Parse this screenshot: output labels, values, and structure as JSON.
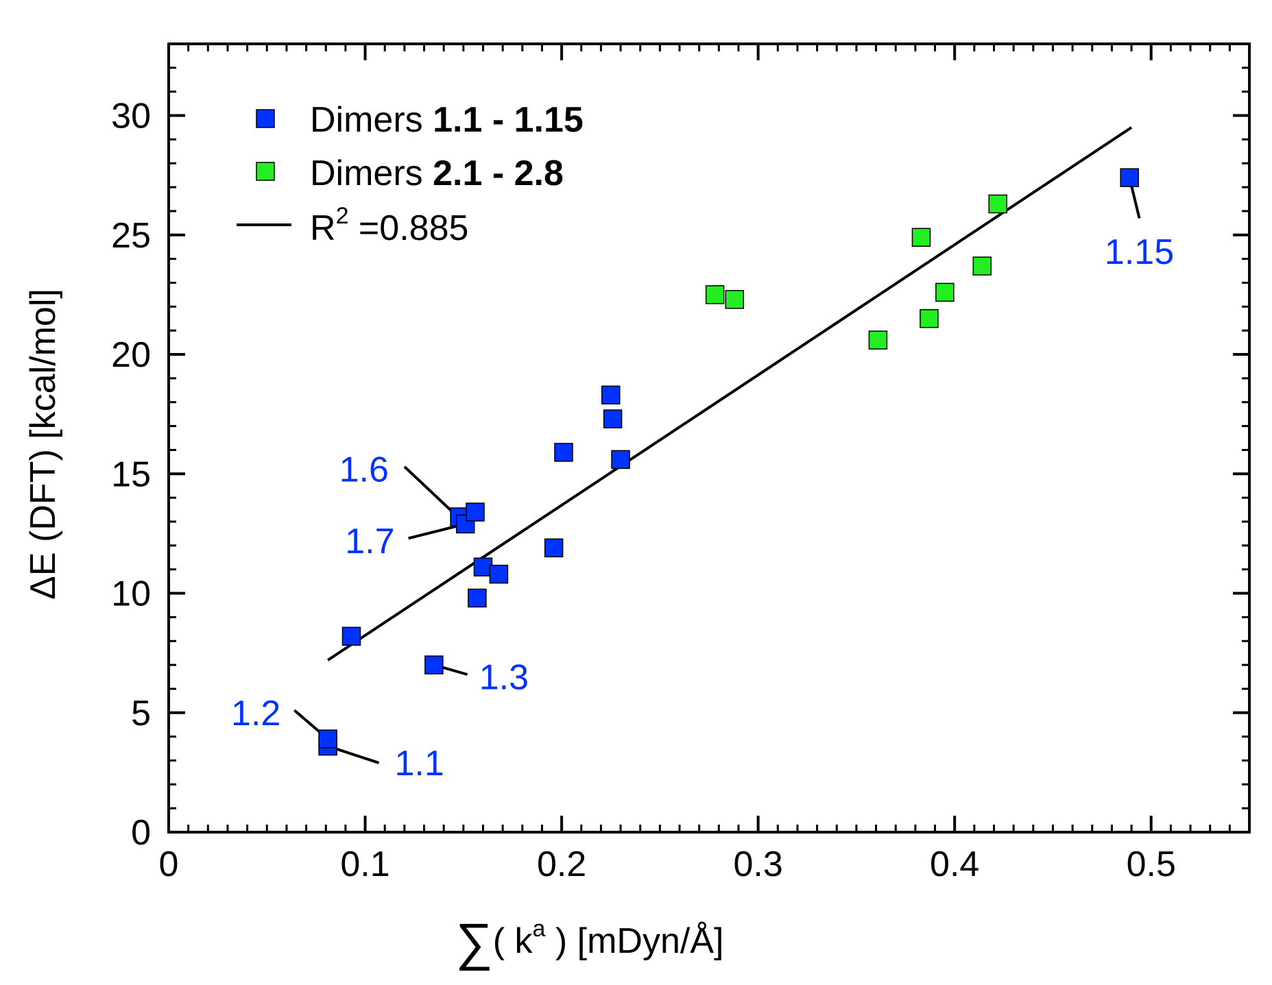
{
  "chart_data": {
    "type": "scatter",
    "xlabel": {
      "sum_symbol": "∑",
      "pre": "( k",
      "sup": "a",
      "post": " ) [mDyn/Å]"
    },
    "ylabel": "ΔE (DFT) [kcal/mol]",
    "xlim": [
      0,
      0.55
    ],
    "ylim": [
      0,
      33
    ],
    "x_ticks": [
      0,
      0.1,
      0.2,
      0.3,
      0.4,
      0.5
    ],
    "x_tick_labels": [
      "0",
      "0.1",
      "0.2",
      "0.3",
      "0.4",
      "0.5"
    ],
    "y_ticks": [
      0,
      5,
      10,
      15,
      20,
      25,
      30
    ],
    "y_tick_labels": [
      "0",
      "5",
      "10",
      "15",
      "20",
      "25",
      "30"
    ],
    "x_minor_step": 0.01,
    "y_minor_step": 1,
    "series": [
      {
        "name": "Dimers 1.1 - 1.15",
        "name_plain": "Dimers ",
        "name_bold": "1.1 - 1.15",
        "color": "#0033ff",
        "points": [
          {
            "x": 0.081,
            "y": 3.6
          },
          {
            "x": 0.081,
            "y": 3.9
          },
          {
            "x": 0.093,
            "y": 8.2
          },
          {
            "x": 0.135,
            "y": 7.0
          },
          {
            "x": 0.148,
            "y": 13.2
          },
          {
            "x": 0.151,
            "y": 12.9
          },
          {
            "x": 0.156,
            "y": 13.4
          },
          {
            "x": 0.157,
            "y": 9.8
          },
          {
            "x": 0.16,
            "y": 11.1
          },
          {
            "x": 0.168,
            "y": 10.8
          },
          {
            "x": 0.196,
            "y": 11.9
          },
          {
            "x": 0.201,
            "y": 15.9
          },
          {
            "x": 0.225,
            "y": 18.3
          },
          {
            "x": 0.226,
            "y": 17.3
          },
          {
            "x": 0.23,
            "y": 15.6
          },
          {
            "x": 0.489,
            "y": 27.4
          }
        ]
      },
      {
        "name": "Dimers 2.1 - 2.8",
        "name_plain": "Dimers ",
        "name_bold": "2.1 - 2.8",
        "color": "#22ee22",
        "points": [
          {
            "x": 0.278,
            "y": 22.5
          },
          {
            "x": 0.288,
            "y": 22.3
          },
          {
            "x": 0.361,
            "y": 20.6
          },
          {
            "x": 0.383,
            "y": 24.9
          },
          {
            "x": 0.387,
            "y": 21.5
          },
          {
            "x": 0.395,
            "y": 22.6
          },
          {
            "x": 0.414,
            "y": 23.7
          },
          {
            "x": 0.422,
            "y": 26.3
          }
        ]
      }
    ],
    "fit_line": {
      "label_pre": "R",
      "label_sup": "2",
      "label_post": " =0.885",
      "x": [
        0.081,
        0.49
      ],
      "y": [
        7.2,
        29.5
      ],
      "color": "#000000"
    },
    "annotations": [
      {
        "text": "1.1",
        "x": 0.115,
        "y": 2.9,
        "anchor": "start",
        "point": [
          0.081,
          3.6
        ],
        "line_to": [
          0.107,
          2.9
        ]
      },
      {
        "text": "1.2",
        "x": 0.057,
        "y": 5.0,
        "anchor": "end",
        "point": [
          0.081,
          3.9
        ],
        "line_to": [
          0.064,
          5.1
        ]
      },
      {
        "text": "1.3",
        "x": 0.158,
        "y": 6.5,
        "anchor": "start",
        "point": [
          0.135,
          7.0
        ],
        "line_to": [
          0.152,
          6.6
        ]
      },
      {
        "text": "1.6",
        "x": 0.112,
        "y": 15.2,
        "anchor": "end",
        "point": [
          0.151,
          12.9
        ],
        "line_to": [
          0.12,
          15.3
        ]
      },
      {
        "text": "1.7",
        "x": 0.115,
        "y": 12.2,
        "anchor": "end",
        "point": [
          0.151,
          12.9
        ],
        "line_to": [
          0.122,
          12.3
        ]
      },
      {
        "text": "1.15",
        "x": 0.494,
        "y": 24.3,
        "anchor": "middle",
        "point": [
          0.489,
          27.4
        ],
        "line_to": [
          0.494,
          25.7
        ]
      }
    ],
    "legend": {
      "placement": "top-left"
    },
    "annotation_color": "#0033ff",
    "grid": false
  }
}
